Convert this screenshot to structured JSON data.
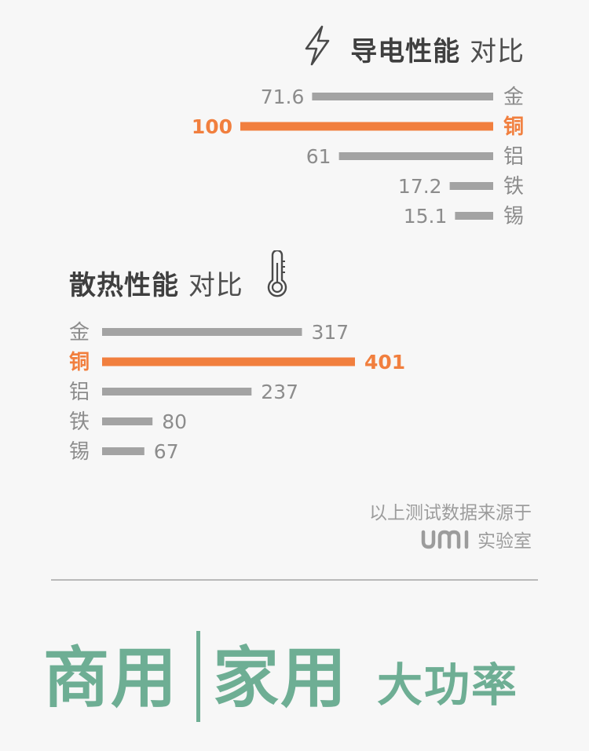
{
  "conductivity": {
    "title_bold": "导电性能",
    "title_light": "对比",
    "icon": "lightning-bolt-icon"
  },
  "heat": {
    "title_bold": "散热性能",
    "title_light": "对比",
    "icon": "thermometer-icon"
  },
  "chart_data": [
    {
      "type": "bar",
      "orientation": "horizontal",
      "title": "导电性能 对比",
      "categories": [
        "金",
        "铜",
        "铝",
        "铁",
        "锡"
      ],
      "values": [
        71.6,
        100,
        61,
        17.2,
        15.1
      ],
      "value_labels": [
        "71.6",
        "100",
        "61",
        "17.2",
        "15.1"
      ],
      "highlight": "铜",
      "bar_direction": "right-to-left"
    },
    {
      "type": "bar",
      "orientation": "horizontal",
      "title": "散热性能 对比",
      "categories": [
        "金",
        "铜",
        "铝",
        "铁",
        "锡"
      ],
      "values": [
        317,
        401,
        237,
        80,
        67
      ],
      "value_labels": [
        "317",
        "401",
        "237",
        "80",
        "67"
      ],
      "highlight": "铜",
      "bar_direction": "left-to-right"
    }
  ],
  "colors": {
    "bar": "#a3a3a3",
    "highlight": "#f17f3e",
    "label": "#8c8c8c",
    "slogan": "#6eae94",
    "background": "#f7f7f7"
  },
  "source": {
    "line1": "以上测试数据来源于",
    "logo": "umi",
    "line2": "实验室"
  },
  "slogan": {
    "part1": "商用",
    "part2": "家用",
    "part3": "大功率"
  }
}
